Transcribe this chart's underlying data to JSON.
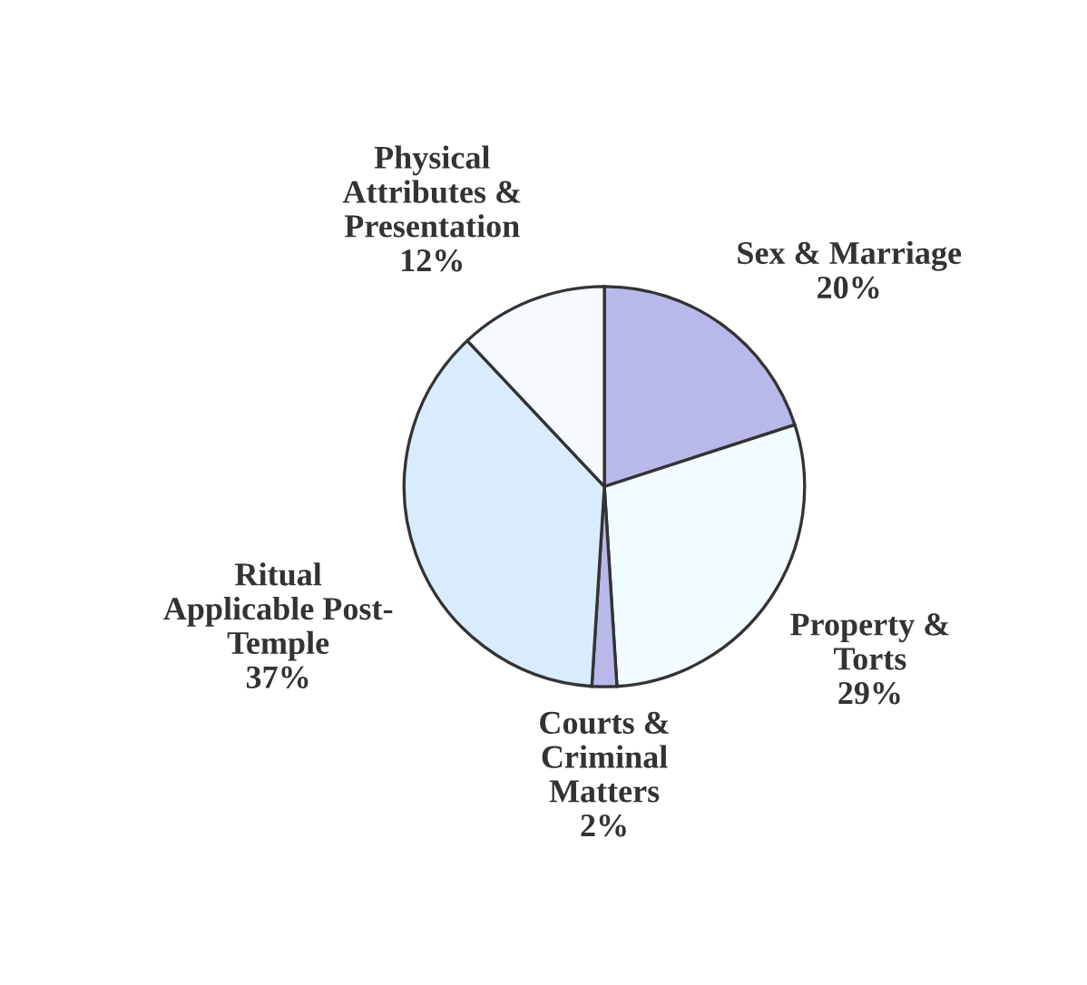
{
  "chart_data": {
    "type": "pie",
    "categories": [
      "Sex & Marriage",
      "Property &\nTorts",
      "Courts &\nCriminal\nMatters",
      "Ritual\nApplicable Post-\nTemple",
      "Physical\nAttributes &\nPresentation"
    ],
    "values": [
      20,
      29,
      2,
      37,
      12
    ],
    "value_labels": [
      "20%",
      "29%",
      "2%",
      "37%",
      "12%"
    ],
    "colors": [
      "#b8b8ea",
      "#f2fbff",
      "#b8b8ea",
      "#d8ecfd",
      "#f4faff"
    ]
  }
}
